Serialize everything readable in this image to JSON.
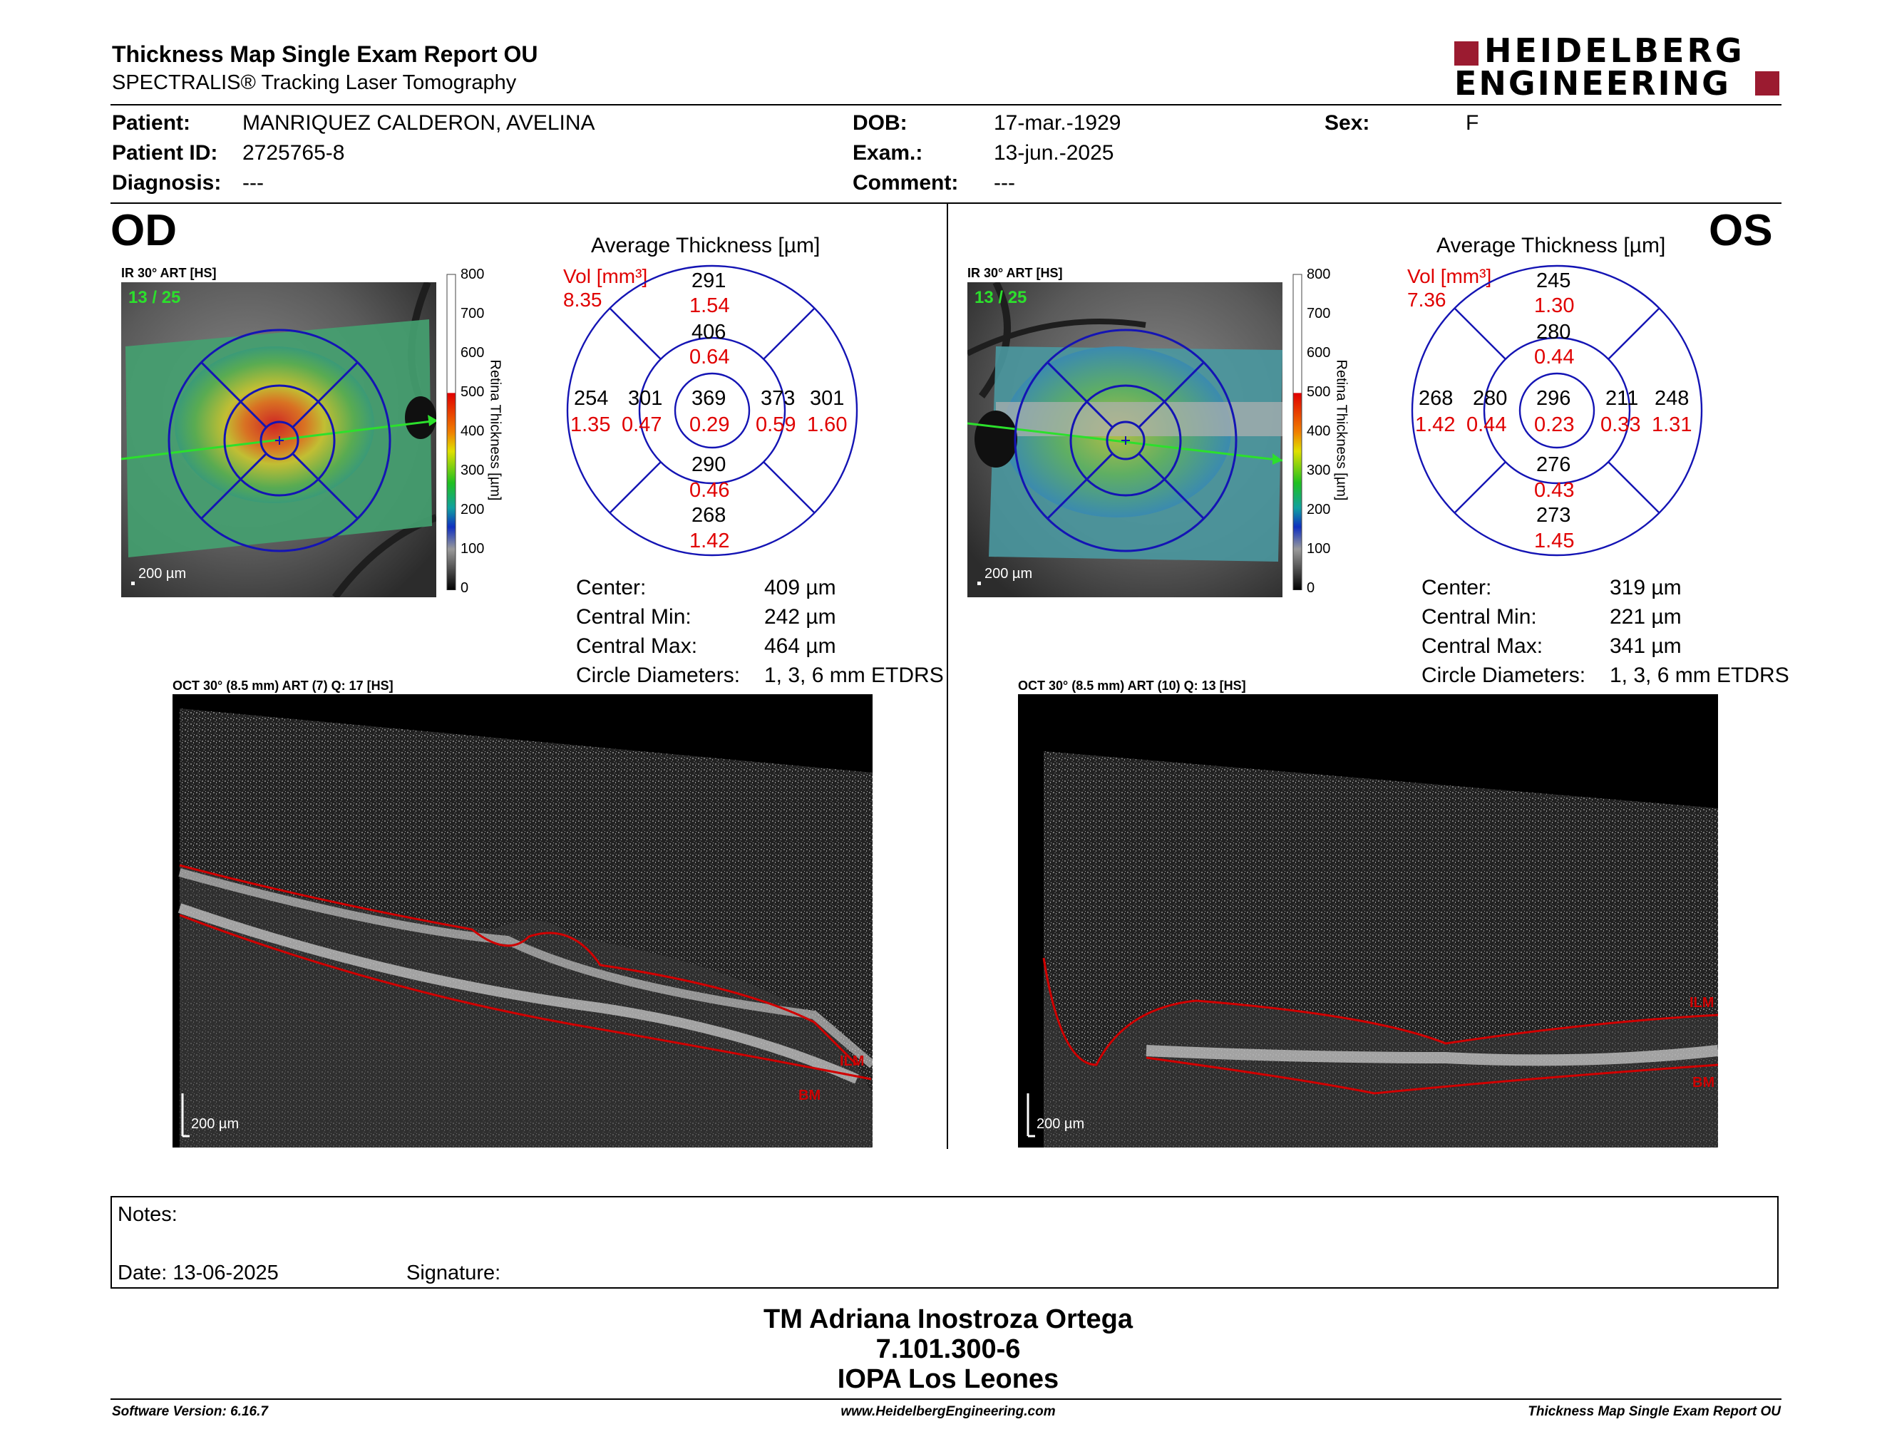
{
  "report": {
    "title": "Thickness Map Single Exam Report OU",
    "subtitle": "SPECTRALIS® Tracking Laser Tomography",
    "logo_line1": "HEIDELBERG",
    "logo_line2": "ENGINEERING",
    "brand_color": "#9b1b30"
  },
  "patient": {
    "patient_label": "Patient:",
    "patient_value": "MANRIQUEZ CALDERON, AVELINA",
    "id_label": "Patient ID:",
    "id_value": "2725765-8",
    "diagnosis_label": "Diagnosis:",
    "diagnosis_value": "---",
    "dob_label": "DOB:",
    "dob_value": "17-mar.-1929",
    "exam_label": "Exam.:",
    "exam_value": "13-jun.-2025",
    "comment_label": "Comment:",
    "comment_value": "---",
    "sex_label": "Sex:",
    "sex_value": "F"
  },
  "scale": {
    "ticks": [
      "800",
      "700",
      "600",
      "500",
      "400",
      "300",
      "200",
      "100",
      "0"
    ],
    "axis_label": "Retina Thickness [µm]"
  },
  "od": {
    "eye": "OD",
    "ir_label": "IR 30° ART [HS]",
    "frame_count": "13 / 25",
    "scalebar": "200 µm",
    "avg_title": "Average Thickness [µm]",
    "vol_label": "Vol [mm³]",
    "vol_value": "8.35",
    "sectors": {
      "outer_sup": {
        "t": "291",
        "v": "1.54"
      },
      "inner_sup": {
        "t": "406",
        "v": "0.64"
      },
      "outer_left": {
        "t": "254",
        "v": "1.35"
      },
      "inner_left": {
        "t": "301",
        "v": "0.47"
      },
      "center": {
        "t": "369",
        "v": "0.29"
      },
      "inner_right": {
        "t": "373",
        "v": "0.59"
      },
      "outer_right": {
        "t": "301",
        "v": "1.60"
      },
      "inner_inf": {
        "t": "290",
        "v": "0.46"
      },
      "outer_inf": {
        "t": "268",
        "v": "1.42"
      }
    },
    "stats": [
      {
        "label": "Center:",
        "value": "409 µm"
      },
      {
        "label": "Central Min:",
        "value": "242 µm"
      },
      {
        "label": "Central Max:",
        "value": "464 µm"
      },
      {
        "label": "Circle Diameters:",
        "value": "1, 3, 6 mm ETDRS"
      }
    ],
    "oct_label": "OCT 30° (8.5 mm) ART (7) Q: 17 [HS]",
    "oct_scalebar": "200 µm",
    "ilm": "ILM",
    "bm": "BM"
  },
  "os": {
    "eye": "OS",
    "ir_label": "IR 30° ART [HS]",
    "frame_count": "13 / 25",
    "scalebar": "200 µm",
    "avg_title": "Average Thickness [µm]",
    "vol_label": "Vol [mm³]",
    "vol_value": "7.36",
    "sectors": {
      "outer_sup": {
        "t": "245",
        "v": "1.30"
      },
      "inner_sup": {
        "t": "280",
        "v": "0.44"
      },
      "outer_left": {
        "t": "268",
        "v": "1.42"
      },
      "inner_left": {
        "t": "280",
        "v": "0.44"
      },
      "center": {
        "t": "296",
        "v": "0.23"
      },
      "inner_right": {
        "t": "211",
        "v": "0.33"
      },
      "outer_right": {
        "t": "248",
        "v": "1.31"
      },
      "inner_inf": {
        "t": "276",
        "v": "0.43"
      },
      "outer_inf": {
        "t": "273",
        "v": "1.45"
      }
    },
    "stats": [
      {
        "label": "Center:",
        "value": "319 µm"
      },
      {
        "label": "Central Min:",
        "value": "221 µm"
      },
      {
        "label": "Central Max:",
        "value": "341 µm"
      },
      {
        "label": "Circle Diameters:",
        "value": "1, 3, 6 mm ETDRS"
      }
    ],
    "oct_label": "OCT 30° (8.5 mm) ART (10) Q: 13 [HS]",
    "oct_scalebar": "200 µm",
    "ilm": "ILM",
    "bm": "BM"
  },
  "notes": {
    "notes_label": "Notes:",
    "date_label": "Date: 13-06-2025",
    "signature_label": "Signature:"
  },
  "signoff": {
    "name": "TM Adriana Inostroza Ortega",
    "rut": "7.101.300-6",
    "site": "IOPA Los Leones"
  },
  "footer": {
    "software": "Software Version: 6.16.7",
    "website": "www.HeidelbergEngineering.com",
    "report": "Thickness Map Single Exam Report OU"
  }
}
